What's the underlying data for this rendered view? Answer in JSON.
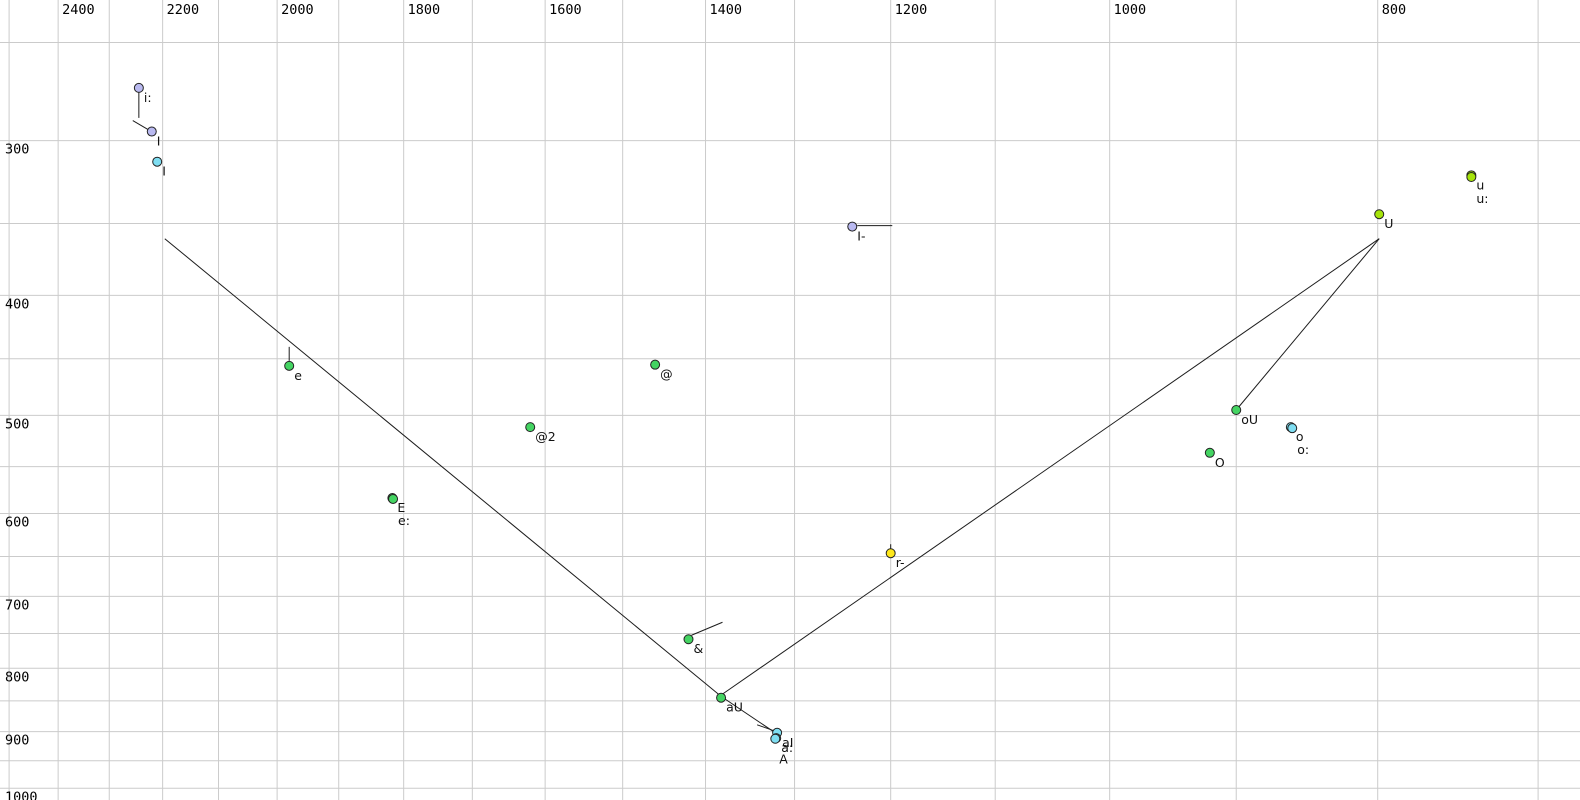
{
  "chart_data": {
    "type": "scatter",
    "title": "",
    "x_axis": {
      "position": "top",
      "tick_labels": [
        2400,
        2200,
        2000,
        1800,
        1600,
        1400,
        1200,
        1000,
        800
      ],
      "gridline_min": 700,
      "gridline_max": 2500,
      "gridline_step": 100,
      "scale": "log",
      "reversed": true,
      "hz_at_left_edge": 2519,
      "hz_at_right_edge": 676
    },
    "y_axis": {
      "position": "left",
      "tick_labels": [
        300,
        400,
        500,
        600,
        700,
        800,
        900,
        1000
      ],
      "gridline_min": 250,
      "gridline_max": 1000,
      "gridline_step": 50,
      "scale": "log",
      "hz_at_top_edge": 231,
      "hz_at_bottom_edge": 1022
    },
    "points": [
      {
        "label": "i:",
        "f2": 2244,
        "f1": 272,
        "color": "lavender",
        "tail": [
          [
            0,
            4
          ],
          [
            0,
            30
          ]
        ]
      },
      {
        "label": "I",
        "f2": 2220,
        "f1": 295,
        "color": "lavender",
        "tail": [
          [
            -19,
            -11
          ],
          [
            -2,
            -1
          ]
        ]
      },
      {
        "label": "I",
        "f2": 2210,
        "f1": 312,
        "color": "cyan"
      },
      {
        "label": "I-",
        "f2": 1239,
        "f1": 352,
        "color": "lavender",
        "tail": [
          [
            5,
            -1
          ],
          [
            40,
            -1
          ]
        ]
      },
      {
        "label": "u",
        "f2": 740,
        "f1": 320,
        "color": "chartreuse"
      },
      {
        "label": "u:",
        "f2": 740,
        "f1": 321,
        "color": "chartreuse",
        "label_offset": [
          5,
          16
        ]
      },
      {
        "label": "U",
        "f2": 799,
        "f1": 344,
        "color": "chartreuse"
      },
      {
        "label": "e",
        "f2": 1980,
        "f1": 456,
        "color": "green",
        "tail": [
          [
            0,
            -5
          ],
          [
            0,
            -19
          ]
        ]
      },
      {
        "label": "@",
        "f2": 1460,
        "f1": 455,
        "color": "green"
      },
      {
        "label": "@2",
        "f2": 1620,
        "f1": 511,
        "color": "green"
      },
      {
        "label": "E",
        "f2": 1817,
        "f1": 583,
        "color": "green"
      },
      {
        "label": "e:",
        "f2": 1816,
        "f1": 584,
        "color": "green",
        "label_offset": [
          5,
          16
        ]
      },
      {
        "label": "oU",
        "f2": 900,
        "f1": 495,
        "color": "green"
      },
      {
        "label": "o",
        "f2": 860,
        "f1": 511,
        "color": "cyan"
      },
      {
        "label": "o:",
        "f2": 859,
        "f1": 512,
        "color": "cyan",
        "label_offset": [
          5,
          16
        ]
      },
      {
        "label": "O",
        "f2": 920,
        "f1": 536,
        "color": "green"
      },
      {
        "label": "r-",
        "f2": 1200,
        "f1": 646,
        "color": "yellow",
        "tail": [
          [
            0,
            -4
          ],
          [
            0,
            -9
          ]
        ]
      },
      {
        "label": "&",
        "f2": 1420,
        "f1": 758,
        "color": "green",
        "tail": [
          [
            3,
            -4
          ],
          [
            34,
            -17
          ]
        ]
      },
      {
        "label": "aU",
        "f2": 1382,
        "f1": 845,
        "color": "green"
      },
      {
        "label": "aI",
        "f2": 1319,
        "f1": 902,
        "color": "cyan",
        "tail": [
          [
            -20,
            -8
          ],
          [
            -3,
            -2
          ]
        ]
      },
      {
        "label": "a:",
        "f2": 1320,
        "f1": 911,
        "color": "cyan"
      },
      {
        "label": "A",
        "f2": 1321,
        "f1": 912,
        "color": "cyan",
        "label_offset": [
          4,
          15
        ]
      }
    ],
    "segments": [
      {
        "name": "front-diagonal",
        "points_hz": [
          [
            2196,
            360
          ],
          [
            1382,
            843
          ],
          [
            1322,
            901
          ]
        ]
      },
      {
        "name": "back-diagonal",
        "points_hz": [
          [
            1380,
            839
          ],
          [
            799,
            360
          ]
        ]
      },
      {
        "name": "u-to-ou-line",
        "points_hz": [
          [
            799,
            360
          ],
          [
            900,
            495
          ]
        ]
      }
    ]
  },
  "colors": {
    "background": "#ffffff",
    "grid": "#cbcbcb",
    "line": "#1c1c1c",
    "point_stroke": "#222222",
    "tick_text": "#000000",
    "label_text": "#111111",
    "palette": {
      "lavender": "#b9b9f0",
      "cyan": "#7fdef2",
      "green": "#44d462",
      "chartreuse": "#a6e40a",
      "yellow": "#ffe81a"
    }
  }
}
